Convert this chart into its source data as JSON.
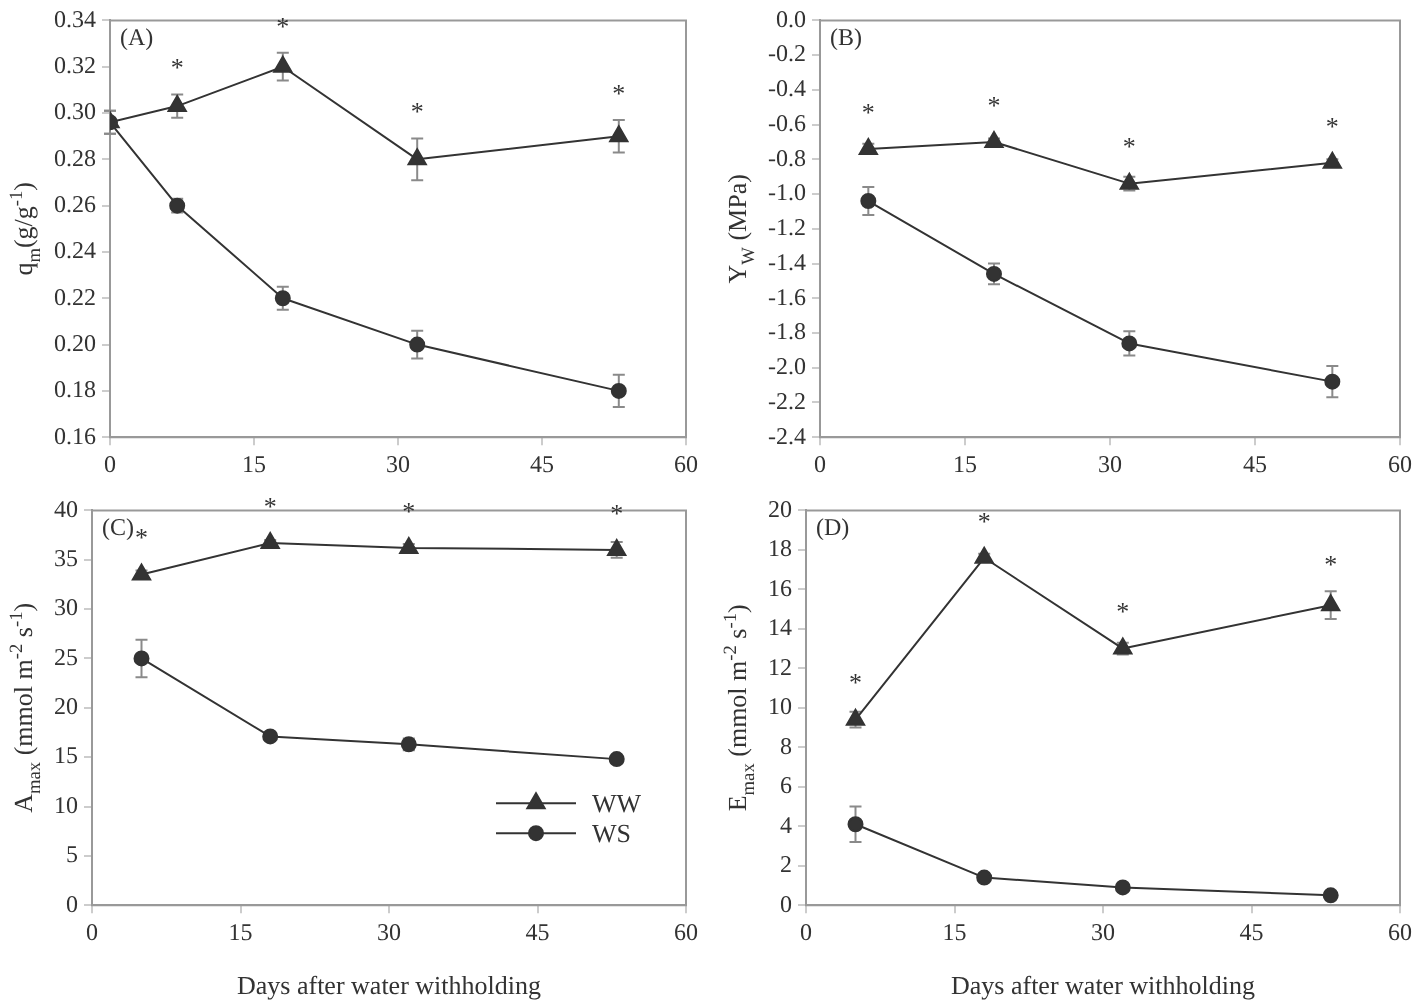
{
  "chart_data": [
    {
      "type": "line",
      "ylabel": "q$_{m}$(g/g$^{-1}$)",
      "annotations": [
        "(A)",
        "*",
        "*",
        "*",
        "*"
      ],
      "series": [
        {
          "color": "#333333",
          "marker": "triangle",
          "x": [
            0,
            7,
            18,
            32,
            53
          ],
          "values": [
            0.296,
            0.303,
            0.32,
            0.28,
            0.29
          ],
          "errors": [
            0.005,
            0.005,
            0.006,
            0.009,
            0.007
          ]
        },
        {
          "color": "#333333",
          "marker": "circle",
          "x": [
            0,
            7,
            18,
            32,
            53
          ],
          "values": [
            0.296,
            0.26,
            0.22,
            0.2,
            0.18
          ],
          "errors": [
            0.005,
            0.003,
            0.005,
            0.006,
            0.007
          ]
        }
      ],
      "xlim": [
        0,
        60
      ],
      "xticks": [
        0,
        15,
        30,
        45,
        60
      ],
      "ylim": [
        0.16,
        0.34
      ],
      "yticks": [
        0.16,
        0.18,
        {
          "value": 0.2,
          "label": "0.20"
        },
        0.22,
        0.24,
        0.26,
        0.28,
        {
          "value": 0.3,
          "label": "0.30"
        },
        0.32,
        0.34
      ],
      "grid": false,
      "line_style": "solid"
    },
    {
      "type": "line",
      "ylabel": "Y$_{W}$ (MPa)",
      "annotations": [
        "(B)",
        "*",
        "*",
        "*",
        "*"
      ],
      "series": [
        {
          "color": "#333333",
          "marker": "triangle",
          "x": [
            5,
            18,
            32,
            53
          ],
          "values": [
            -0.74,
            -0.7,
            -0.94,
            -0.82
          ],
          "errors": [
            0.03,
            0.02,
            0.04,
            0.02
          ]
        },
        {
          "color": "#333333",
          "marker": "circle",
          "x": [
            5,
            18,
            32,
            53
          ],
          "values": [
            -1.04,
            -1.46,
            -1.86,
            -2.08
          ],
          "errors": [
            0.08,
            0.06,
            0.07,
            0.09
          ]
        }
      ],
      "xlim": [
        0,
        60
      ],
      "xticks": [
        0,
        15,
        30,
        45,
        60
      ],
      "ylim": [
        -2.4,
        0
      ],
      "yticks": [
        -2.4,
        -2.2,
        {
          "value": -2,
          "label": "-2.0"
        },
        -1.8,
        -1.6,
        -1.4,
        -1.2,
        {
          "value": -1,
          "label": "-1.0"
        },
        -0.8,
        -0.6,
        -0.4,
        -0.2,
        {
          "value": 0,
          "label": "0.0"
        }
      ],
      "grid": false,
      "line_style": "solid"
    },
    {
      "type": "line",
      "xlabel": "Days after water withholding",
      "ylabel": "A$_{max}$ (mmol m$^{-2}$ s$^{-1}$)",
      "annotations": [
        "(C)",
        "*",
        "*",
        "*",
        "*"
      ],
      "series": [
        {
          "name": "WW",
          "color": "#333333",
          "marker": "triangle",
          "x": [
            5,
            18,
            32,
            53
          ],
          "values": [
            33.5,
            36.7,
            36.2,
            36.0
          ],
          "errors": [
            0.4,
            0.3,
            0.4,
            0.8
          ]
        },
        {
          "name": "WS",
          "color": "#333333",
          "marker": "circle",
          "x": [
            5,
            18,
            32,
            53
          ],
          "values": [
            25.0,
            17.1,
            16.3,
            14.8
          ],
          "errors": [
            1.9,
            0.3,
            0.6,
            0.3
          ]
        }
      ],
      "xlim": [
        0,
        60
      ],
      "xticks": [
        0,
        15,
        30,
        45,
        60
      ],
      "ylim": [
        0,
        40
      ],
      "yticks": [
        0,
        5,
        10,
        15,
        20,
        25,
        30,
        35,
        40
      ],
      "grid": false,
      "legend": "bottom right",
      "line_style": "solid"
    },
    {
      "type": "line",
      "xlabel": "Days after water withholding",
      "ylabel": "E$_{max}$ (mmol m$^{-2}$ s$^{-1}$)",
      "annotations": [
        "(D)",
        "*",
        "*",
        "*",
        "*"
      ],
      "series": [
        {
          "color": "#333333",
          "marker": "triangle",
          "x": [
            5,
            18,
            32,
            53
          ],
          "values": [
            9.4,
            17.6,
            13.0,
            15.2
          ],
          "errors": [
            0.4,
            0.2,
            0.3,
            0.7
          ]
        },
        {
          "color": "#333333",
          "marker": "circle",
          "x": [
            5,
            18,
            32,
            53
          ],
          "values": [
            4.1,
            1.4,
            0.9,
            0.5
          ],
          "errors": [
            0.9,
            0.1,
            0.1,
            0.1
          ]
        }
      ],
      "xlim": [
        0,
        60
      ],
      "xticks": [
        0,
        15,
        30,
        45,
        60
      ],
      "ylim": [
        0,
        20
      ],
      "yticks": [
        0,
        2,
        4,
        6,
        8,
        10,
        12,
        14,
        16,
        18,
        20
      ],
      "grid": false,
      "line_style": "solid"
    }
  ]
}
